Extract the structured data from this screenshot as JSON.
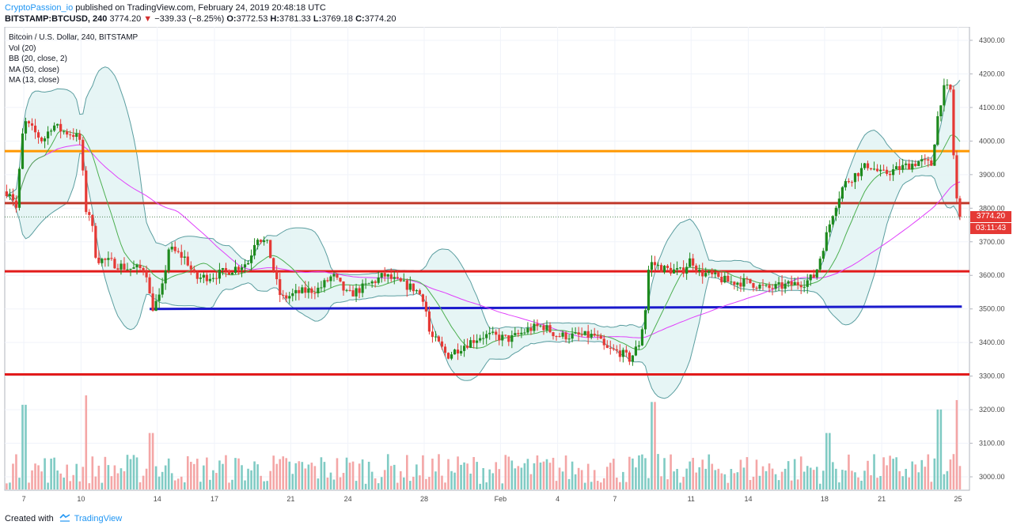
{
  "header": {
    "author": "CryptoPassion_io",
    "published": "published on TradingView.com, February 24, 2019 20:48:18 UTC",
    "symbol": "BITSTAMP:BTCUSD, 240",
    "last": "3774.20",
    "change": "−339.33 (−8.25%)",
    "o_label": "O:",
    "o": "3772.53",
    "h_label": "H:",
    "h": "3781.33",
    "l_label": "L:",
    "l": "3769.18",
    "c_label": "C:",
    "c": "3774.20"
  },
  "legend": {
    "title": "Bitcoin / U.S. Dollar, 240, BITSTAMP",
    "vol": "Vol (20)",
    "bb": "BB (20, close, 2)",
    "ma50": "MA (50, close)",
    "ma13": "MA (13, close)"
  },
  "price_tags": {
    "last_price": "3774.20",
    "countdown": "03:11:43"
  },
  "footer": {
    "prefix": "Created with",
    "brand": "TradingView"
  },
  "colors": {
    "up": "#26a69a",
    "up_candle": "#1e8a1e",
    "down": "#e53935",
    "vol_up": "#80cbc4",
    "vol_down": "#f4a6a6",
    "bb_fill": "#e3f4f4",
    "bb_line": "#5b9ea0",
    "ma50": "#e040fb",
    "ma13": "#4caf50",
    "level_orange": "#ff9800",
    "level_red": "#e21b1b",
    "level_darkred": "#c0392b",
    "level_blue": "#1a1acc"
  },
  "chart_data": {
    "type": "candlestick",
    "y_axis": {
      "min": 2960,
      "max": 4340,
      "ticks": [
        "4300.00",
        "4200.00",
        "4100.00",
        "4000.00",
        "3900.00",
        "3800.00",
        "3700.00",
        "3600.00",
        "3500.00",
        "3400.00",
        "3300.00",
        "3200.00",
        "3100.00",
        "3000.00"
      ]
    },
    "x_axis": {
      "ticks": [
        {
          "label": "7",
          "t": 7
        },
        {
          "label": "10",
          "t": 10
        },
        {
          "label": "14",
          "t": 14
        },
        {
          "label": "17",
          "t": 17
        },
        {
          "label": "21",
          "t": 21
        },
        {
          "label": "24",
          "t": 24
        },
        {
          "label": "28",
          "t": 28
        },
        {
          "label": "Feb",
          "t": 32
        },
        {
          "label": "4",
          "t": 35
        },
        {
          "label": "7",
          "t": 38
        },
        {
          "label": "11",
          "t": 42
        },
        {
          "label": "14",
          "t": 45
        },
        {
          "label": "18",
          "t": 49
        },
        {
          "label": "21",
          "t": 52
        },
        {
          "label": "25",
          "t": 56
        }
      ]
    },
    "horizontal_levels": [
      {
        "price": 3970,
        "color": "level_orange"
      },
      {
        "price": 3815,
        "color": "level_darkred"
      },
      {
        "price": 3612,
        "color": "level_red"
      },
      {
        "price": 3305,
        "color": "level_red"
      }
    ],
    "trend_segments": [
      {
        "t0": 13.6,
        "t1": 56.2,
        "price": 3500,
        "end_price": 3507,
        "color": "level_blue"
      }
    ],
    "last_price": 3774.2,
    "anchors": [
      [
        6.3,
        3850
      ],
      [
        6.6,
        3800
      ],
      [
        7.0,
        4060
      ],
      [
        7.5,
        4030
      ],
      [
        8.0,
        4000
      ],
      [
        8.5,
        4050
      ],
      [
        9.0,
        4030
      ],
      [
        9.6,
        4020
      ],
      [
        10.0,
        4000
      ],
      [
        10.2,
        3800
      ],
      [
        10.5,
        3780
      ],
      [
        10.8,
        3650
      ],
      [
        11.5,
        3640
      ],
      [
        12.5,
        3620
      ],
      [
        13.4,
        3620
      ],
      [
        13.7,
        3500
      ],
      [
        14.2,
        3540
      ],
      [
        14.6,
        3680
      ],
      [
        15.5,
        3650
      ],
      [
        16.0,
        3590
      ],
      [
        17.0,
        3600
      ],
      [
        18.0,
        3620
      ],
      [
        18.8,
        3640
      ],
      [
        19.2,
        3720
      ],
      [
        19.8,
        3690
      ],
      [
        20.2,
        3590
      ],
      [
        20.5,
        3530
      ],
      [
        21.5,
        3550
      ],
      [
        22.5,
        3560
      ],
      [
        23.2,
        3600
      ],
      [
        24.0,
        3540
      ],
      [
        25.0,
        3570
      ],
      [
        25.9,
        3600
      ],
      [
        26.6,
        3580
      ],
      [
        27.5,
        3560
      ],
      [
        28.0,
        3530
      ],
      [
        28.3,
        3420
      ],
      [
        28.7,
        3400
      ],
      [
        29.2,
        3360
      ],
      [
        30.0,
        3390
      ],
      [
        31.0,
        3420
      ],
      [
        31.5,
        3420
      ],
      [
        32.5,
        3410
      ],
      [
        33.5,
        3440
      ],
      [
        34.2,
        3450
      ],
      [
        35.0,
        3420
      ],
      [
        35.8,
        3420
      ],
      [
        36.5,
        3420
      ],
      [
        37.0,
        3420
      ],
      [
        37.5,
        3380
      ],
      [
        38.3,
        3370
      ],
      [
        38.8,
        3350
      ],
      [
        39.3,
        3400
      ],
      [
        39.6,
        3500
      ],
      [
        39.8,
        3640
      ],
      [
        40.5,
        3620
      ],
      [
        41.5,
        3610
      ],
      [
        42.0,
        3650
      ],
      [
        42.4,
        3610
      ],
      [
        43.0,
        3600
      ],
      [
        44.0,
        3580
      ],
      [
        45.0,
        3580
      ],
      [
        46.0,
        3560
      ],
      [
        47.0,
        3570
      ],
      [
        48.0,
        3580
      ],
      [
        48.5,
        3600
      ],
      [
        49.0,
        3700
      ],
      [
        49.5,
        3800
      ],
      [
        50.0,
        3870
      ],
      [
        50.6,
        3900
      ],
      [
        51.3,
        3930
      ],
      [
        52.0,
        3900
      ],
      [
        53.0,
        3920
      ],
      [
        54.0,
        3940
      ],
      [
        54.6,
        3930
      ],
      [
        55.0,
        4100
      ],
      [
        55.3,
        4160
      ],
      [
        55.6,
        4150
      ],
      [
        55.8,
        3920
      ],
      [
        56.0,
        3780
      ],
      [
        56.2,
        3774
      ]
    ],
    "volume_axis": {
      "max": 10
    },
    "volume_spikes": [
      [
        7.0,
        9
      ],
      [
        10.3,
        10
      ],
      [
        13.7,
        6
      ],
      [
        40.0,
        9.3
      ],
      [
        49.2,
        6
      ],
      [
        55.0,
        8.5
      ],
      [
        55.9,
        9.5
      ]
    ]
  }
}
